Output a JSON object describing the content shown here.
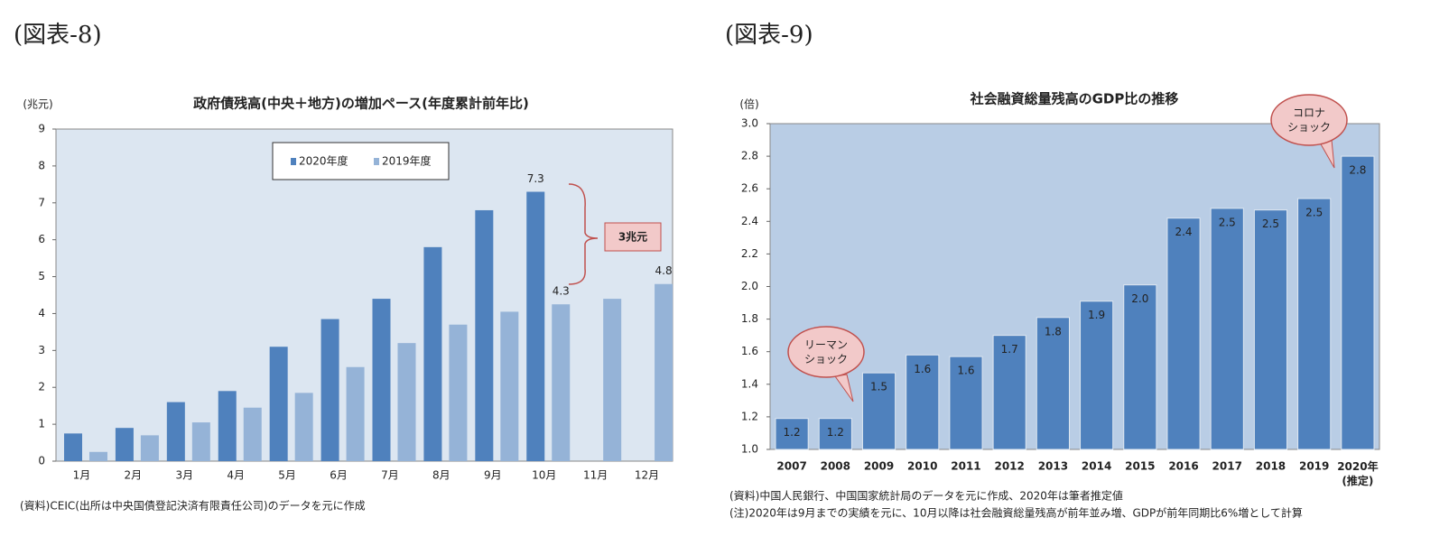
{
  "chart_data": [
    {
      "type": "bar",
      "figure_label": "(図表-8)",
      "title": "政府債残高(中央＋地方)の増加ペース(年度累計前年比)",
      "unit_label": "(兆元)",
      "categories": [
        "1月",
        "2月",
        "3月",
        "4月",
        "5月",
        "6月",
        "7月",
        "8月",
        "9月",
        "10月",
        "11月",
        "12月"
      ],
      "series": [
        {
          "name": "2020年度",
          "color": "#4f81bd",
          "values": [
            0.75,
            0.9,
            1.6,
            1.9,
            3.1,
            3.85,
            4.4,
            5.8,
            6.8,
            7.3,
            null,
            null
          ],
          "value_labels": [
            null,
            null,
            null,
            null,
            null,
            null,
            null,
            null,
            null,
            "7.3",
            null,
            null
          ]
        },
        {
          "name": "2019年度",
          "color": "#95b3d7",
          "values": [
            0.25,
            0.7,
            1.05,
            1.45,
            1.85,
            2.55,
            3.2,
            3.7,
            4.05,
            4.25,
            4.4,
            4.8
          ],
          "value_labels": [
            null,
            null,
            null,
            null,
            null,
            null,
            null,
            null,
            null,
            "4.3",
            null,
            "4.8"
          ]
        }
      ],
      "ylim": [
        0,
        9
      ],
      "yticks": [
        0,
        1,
        2,
        3,
        4,
        5,
        6,
        7,
        8,
        9
      ],
      "annotations": [
        "3兆元"
      ],
      "note": "(資料)CEIC(出所は中央国債登記決済有限責任公司)のデータを元に作成"
    },
    {
      "type": "bar",
      "figure_label": "(図表-9)",
      "title": "社会融資総量残高のGDP比の推移",
      "unit_label": "(倍)",
      "categories": [
        "2007",
        "2008",
        "2009",
        "2010",
        "2011",
        "2012",
        "2013",
        "2014",
        "2015",
        "2016",
        "2017",
        "2018",
        "2019",
        "2020年\n(推定)"
      ],
      "values": [
        1.19,
        1.19,
        1.47,
        1.58,
        1.57,
        1.7,
        1.81,
        1.91,
        2.01,
        2.42,
        2.48,
        2.47,
        2.54,
        2.8
      ],
      "value_labels": [
        "1.2",
        "1.2",
        "1.5",
        "1.6",
        "1.6",
        "1.7",
        "1.8",
        "1.9",
        "2.0",
        "2.4",
        "2.5",
        "2.5",
        "2.5",
        "2.8"
      ],
      "color": "#4f81bd",
      "ylim": [
        1,
        3
      ],
      "yticks": [
        {
          "value": 1,
          "label": "1.0"
        },
        1.2,
        1.4,
        1.6,
        1.8,
        {
          "value": 2,
          "label": "2.0"
        },
        2.2,
        2.4,
        2.6,
        2.8,
        {
          "value": 3,
          "label": "3.0"
        }
      ],
      "annotations": [
        "リーマン\nショック",
        "コロナ\nショック"
      ],
      "notes": [
        "(資料)中国人民銀行、中国国家統計局のデータを元に作成、2020年は筆者推定値",
        "(注)2020年は9月までの実績を元に、10月以降は社会融資総量残高が前年並み増、GDPが前年同期比6%増として計算"
      ]
    }
  ]
}
